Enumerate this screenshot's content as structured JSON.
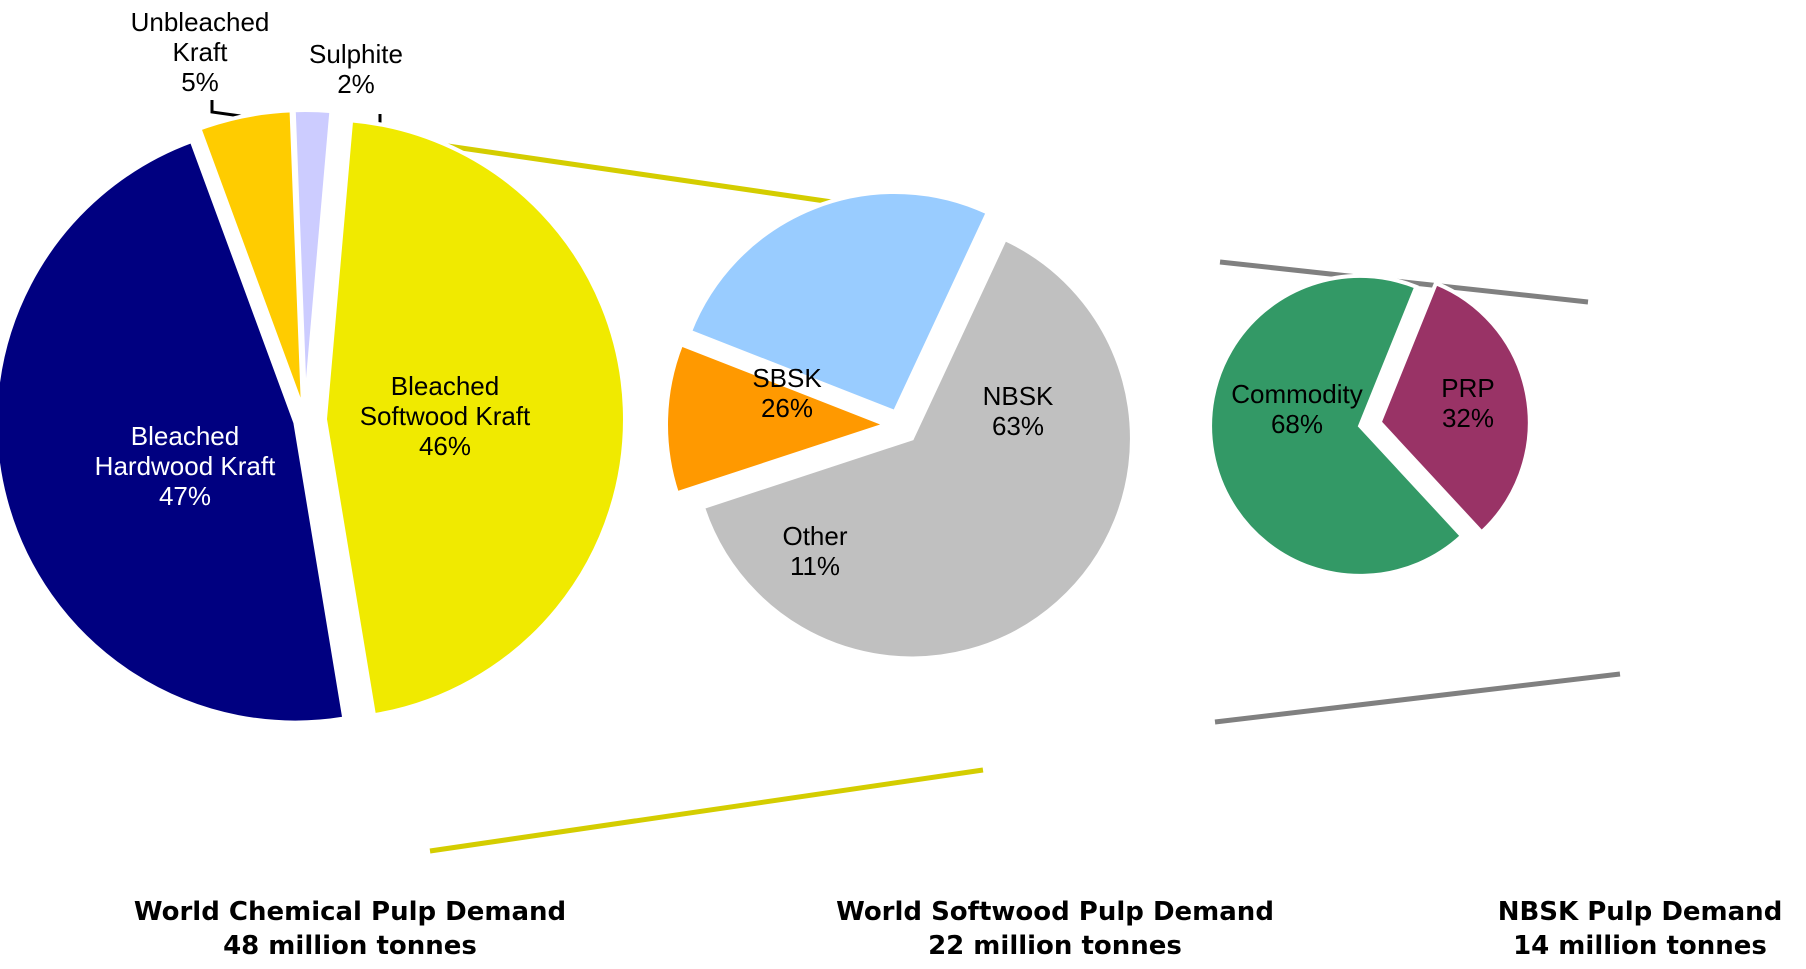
{
  "chart_data": [
    {
      "type": "pie",
      "title": "World Chemical Pulp Demand",
      "subtitle": "48 million tonnes",
      "slices": [
        {
          "label_lines": [
            "Bleached",
            "Softwood Kraft"
          ],
          "value": 46,
          "pct": "46%",
          "color": "#F0EA00"
        },
        {
          "label_lines": [
            "Bleached",
            "Hardwood Kraft"
          ],
          "value": 47,
          "pct": "47%",
          "color": "#000080"
        },
        {
          "label_lines": [
            "Unbleached",
            "Kraft"
          ],
          "value": 5,
          "pct": "5%",
          "color": "#FFCC00"
        },
        {
          "label_lines": [
            "Sulphite"
          ],
          "value": 2,
          "pct": "2%",
          "color": "#CCCCFF"
        }
      ]
    },
    {
      "type": "pie",
      "title": "World Softwood Pulp Demand",
      "subtitle": "22 million tonnes",
      "slices": [
        {
          "label_lines": [
            "NBSK"
          ],
          "value": 63,
          "pct": "63%",
          "color": "#C0C0C0"
        },
        {
          "label_lines": [
            "Other"
          ],
          "value": 11,
          "pct": "11%",
          "color": "#FF9900"
        },
        {
          "label_lines": [
            "SBSK"
          ],
          "value": 26,
          "pct": "26%",
          "color": "#99CCFF"
        }
      ]
    },
    {
      "type": "pie",
      "title": "NBSK Pulp Demand",
      "subtitle": "14 million tonnes",
      "slices": [
        {
          "label_lines": [
            "PRP"
          ],
          "value": 32,
          "pct": "32%",
          "color": "#993366"
        },
        {
          "label_lines": [
            "Commodity"
          ],
          "value": 68,
          "pct": "68%",
          "color": "#339966"
        }
      ]
    }
  ],
  "connector_colors": [
    "#D4CD00",
    "#808080"
  ]
}
